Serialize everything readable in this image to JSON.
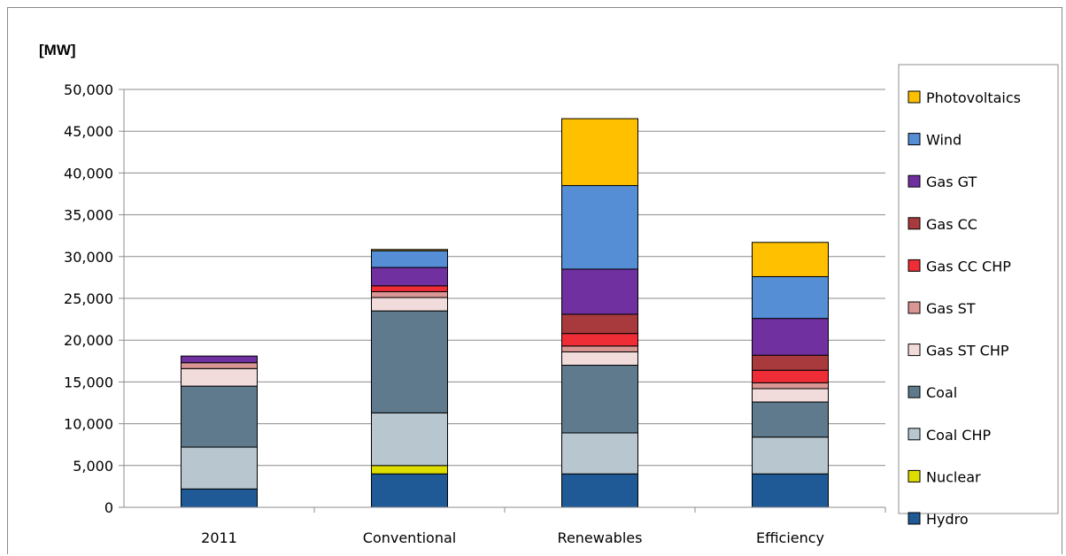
{
  "chart_data": {
    "type": "bar",
    "stacked": true,
    "title": "",
    "ylabel": "[MW]",
    "xlabel": "",
    "ylim": [
      0,
      50000
    ],
    "ytick_step": 5000,
    "yticks": [
      "0",
      "5,000",
      "10,000",
      "15,000",
      "20,000",
      "25,000",
      "30,000",
      "35,000",
      "40,000",
      "45,000",
      "50,000"
    ],
    "grid": true,
    "legend_position": "right",
    "categories": [
      "2011",
      "Conventional",
      "Renewables",
      "Efficiency"
    ],
    "series": [
      {
        "name": "Hydro",
        "color": "#1F5A96",
        "values": [
          2200,
          4000,
          4000,
          4000
        ]
      },
      {
        "name": "Nuclear",
        "color": "#DDDD00",
        "values": [
          0,
          1000,
          0,
          0
        ]
      },
      {
        "name": "Coal CHP",
        "color": "#B8C7CF",
        "values": [
          5000,
          6300,
          4900,
          4400
        ]
      },
      {
        "name": "Coal",
        "color": "#5F7A8C",
        "values": [
          7300,
          12200,
          8100,
          4200
        ]
      },
      {
        "name": "Gas ST CHP",
        "color": "#F2DCDB",
        "values": [
          2100,
          1600,
          1600,
          1600
        ]
      },
      {
        "name": "Gas ST",
        "color": "#D99694",
        "values": [
          700,
          700,
          700,
          700
        ]
      },
      {
        "name": "Gas CC CHP",
        "color": "#EE2D36",
        "values": [
          0,
          700,
          1500,
          1500
        ]
      },
      {
        "name": "Gas CC",
        "color": "#A83A3D",
        "values": [
          0,
          0,
          2300,
          1800
        ]
      },
      {
        "name": "Gas GT",
        "color": "#7030A0",
        "values": [
          800,
          2200,
          5400,
          4400
        ]
      },
      {
        "name": "Wind",
        "color": "#558ED5",
        "values": [
          0,
          2000,
          10000,
          5000
        ]
      },
      {
        "name": "Photovoltaics",
        "color": "#FFC000",
        "values": [
          0,
          150,
          8000,
          4100
        ]
      }
    ]
  }
}
